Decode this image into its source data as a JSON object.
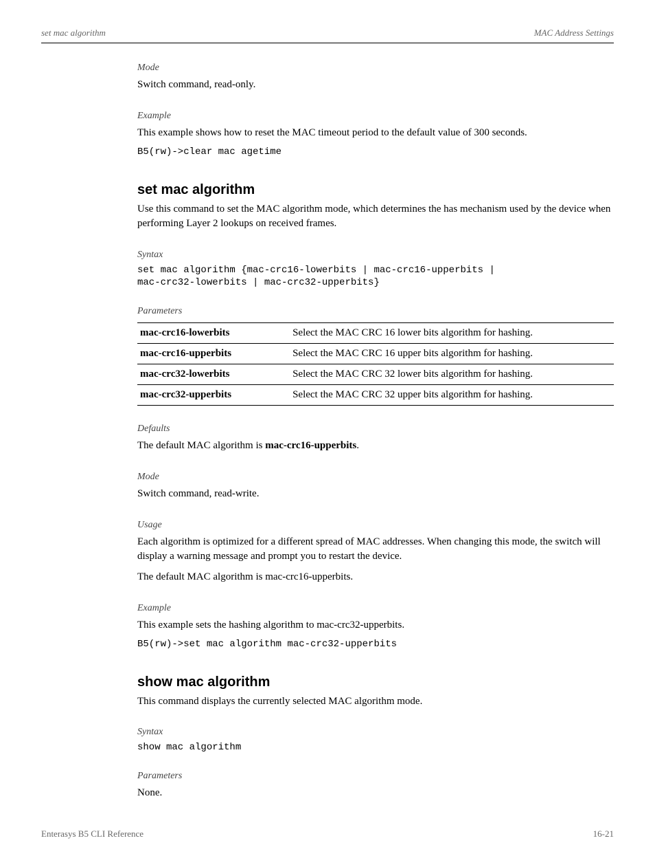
{
  "header": {
    "left": "set mac algorithm",
    "right": "MAC Address Settings"
  },
  "s1": {
    "mode_label": "Mode",
    "mode_text": "Switch command, read-only.",
    "example_label": "Example",
    "example_text": "This example shows how to reset the MAC timeout period to the default value of 300 seconds.",
    "example_cmd": "B5(rw)->clear mac agetime"
  },
  "cmd1": {
    "title": "set mac algorithm",
    "intro": "Use this command to set the MAC algorithm mode, which determines the has mechanism used by the device when performing Layer 2 lookups on received frames.",
    "syntax_label": "Syntax",
    "syntax_l1": "set mac algorithm {mac-crc16-lowerbits | mac-crc16-upperbits |",
    "syntax_l2": "mac-crc32-lowerbits | mac-crc32-upperbits}",
    "params_label": "Parameters",
    "params": [
      {
        "k": "mac-crc16-lowerbits",
        "v": "Select the MAC CRC 16 lower bits algorithm for hashing."
      },
      {
        "k": "mac-crc16-upperbits",
        "v": "Select the MAC CRC 16 upper bits algorithm for hashing."
      },
      {
        "k": "mac-crc32-lowerbits",
        "v": "Select the MAC CRC 32 lower bits algorithm for hashing."
      },
      {
        "k": "mac-crc32-upperbits",
        "v": "Select the MAC CRC 32 upper bits algorithm for hashing."
      }
    ],
    "defaults_label": "Defaults",
    "defaults_pre": "The default MAC algorithm is ",
    "defaults_bold": "mac-crc16-upperbits",
    "defaults_post": ".",
    "mode_label": "Mode",
    "mode_text": "Switch command, read-write.",
    "usage_label": "Usage",
    "usage_p1": "Each algorithm is optimized for a different spread of MAC addresses. When changing this mode, the switch will display a warning message and prompt you to restart the device.",
    "usage_p2": "The default MAC algorithm is mac-crc16-upperbits.",
    "example_label": "Example",
    "example_text": "This example sets the hashing algorithm to mac-crc32-upperbits.",
    "example_cmd": "B5(rw)->set mac algorithm mac-crc32-upperbits"
  },
  "cmd2": {
    "title": "show mac algorithm",
    "intro": "This command displays the currently selected MAC algorithm mode.",
    "syntax_label": "Syntax",
    "syntax": "show mac algorithm",
    "params_label": "Parameters",
    "params_text": "None."
  },
  "footer": {
    "left": "Enterasys B5 CLI Reference",
    "right": "16-21"
  }
}
